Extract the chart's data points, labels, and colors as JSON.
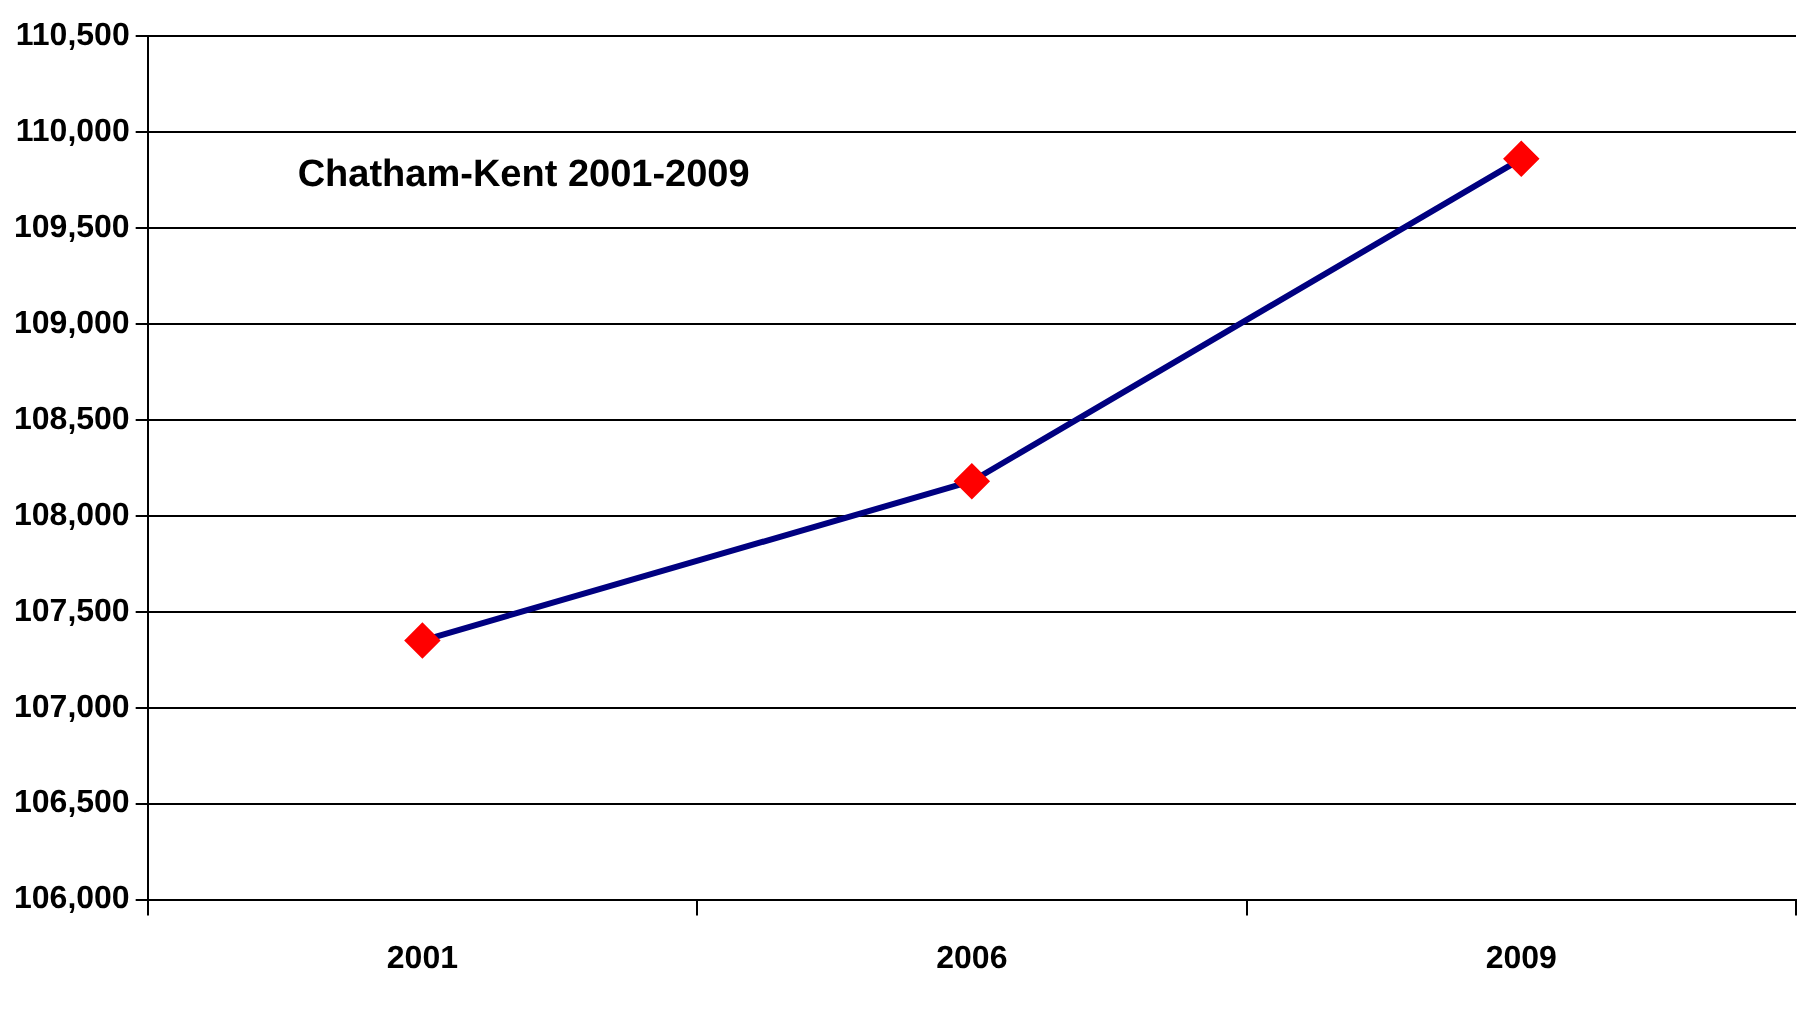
{
  "chart_data": {
    "type": "line",
    "title": "Chatham-Kent 2001-2009",
    "categories": [
      "2001",
      "2006",
      "2009"
    ],
    "series": [
      {
        "color": "#000080",
        "colors": [
          "#ff0000",
          "#ff0000",
          "#ff0000"
        ],
        "values": [
          107350,
          108180,
          109860
        ]
      }
    ],
    "ylim": [
      106000,
      110500
    ],
    "yticks": [
      {
        "value": 106000,
        "label": "106,000"
      },
      {
        "value": 106500,
        "label": "106,500"
      },
      {
        "value": 107000,
        "label": "107,000"
      },
      {
        "value": 107500,
        "label": "107,500"
      },
      {
        "value": 108000,
        "label": "108,000"
      },
      {
        "value": 108500,
        "label": "108,500"
      },
      {
        "value": 109000,
        "label": "109,000"
      },
      {
        "value": 109500,
        "label": "109,500"
      },
      {
        "value": 110000,
        "label": "110,000"
      },
      {
        "value": 110500,
        "label": "110,500"
      }
    ],
    "grid": "y",
    "legend": false,
    "marker": "diamond",
    "line_style": "solid"
  }
}
